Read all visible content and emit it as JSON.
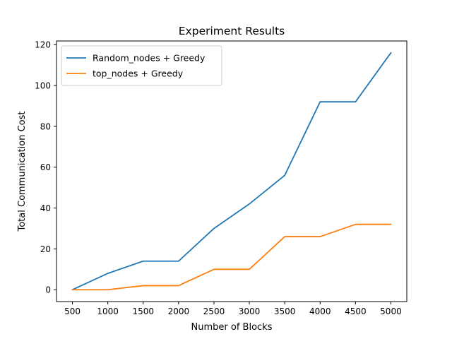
{
  "chart_data": {
    "type": "line",
    "title": "Experiment Results",
    "xlabel": "Number of Blocks",
    "ylabel": "Total Communication Cost",
    "x": [
      500,
      1000,
      1500,
      2000,
      2500,
      3000,
      3500,
      4000,
      4500,
      5000
    ],
    "series": [
      {
        "name": "Random_nodes + Greedy",
        "color": "#1f77b4",
        "values": [
          0,
          8,
          14,
          14,
          30,
          42,
          56,
          92,
          92,
          116
        ]
      },
      {
        "name": "top_nodes + Greedy",
        "color": "#ff7f0e",
        "values": [
          0,
          0,
          2,
          2,
          10,
          10,
          26,
          26,
          32,
          32
        ]
      }
    ],
    "xticks": [
      500,
      1000,
      1500,
      2000,
      2500,
      3000,
      3500,
      4000,
      4500,
      5000
    ],
    "yticks": [
      0,
      20,
      40,
      60,
      80,
      100,
      120
    ],
    "xlim": [
      275,
      5225
    ],
    "ylim": [
      -5.8,
      121.8
    ],
    "grid": false,
    "legend_position": "upper-left"
  }
}
